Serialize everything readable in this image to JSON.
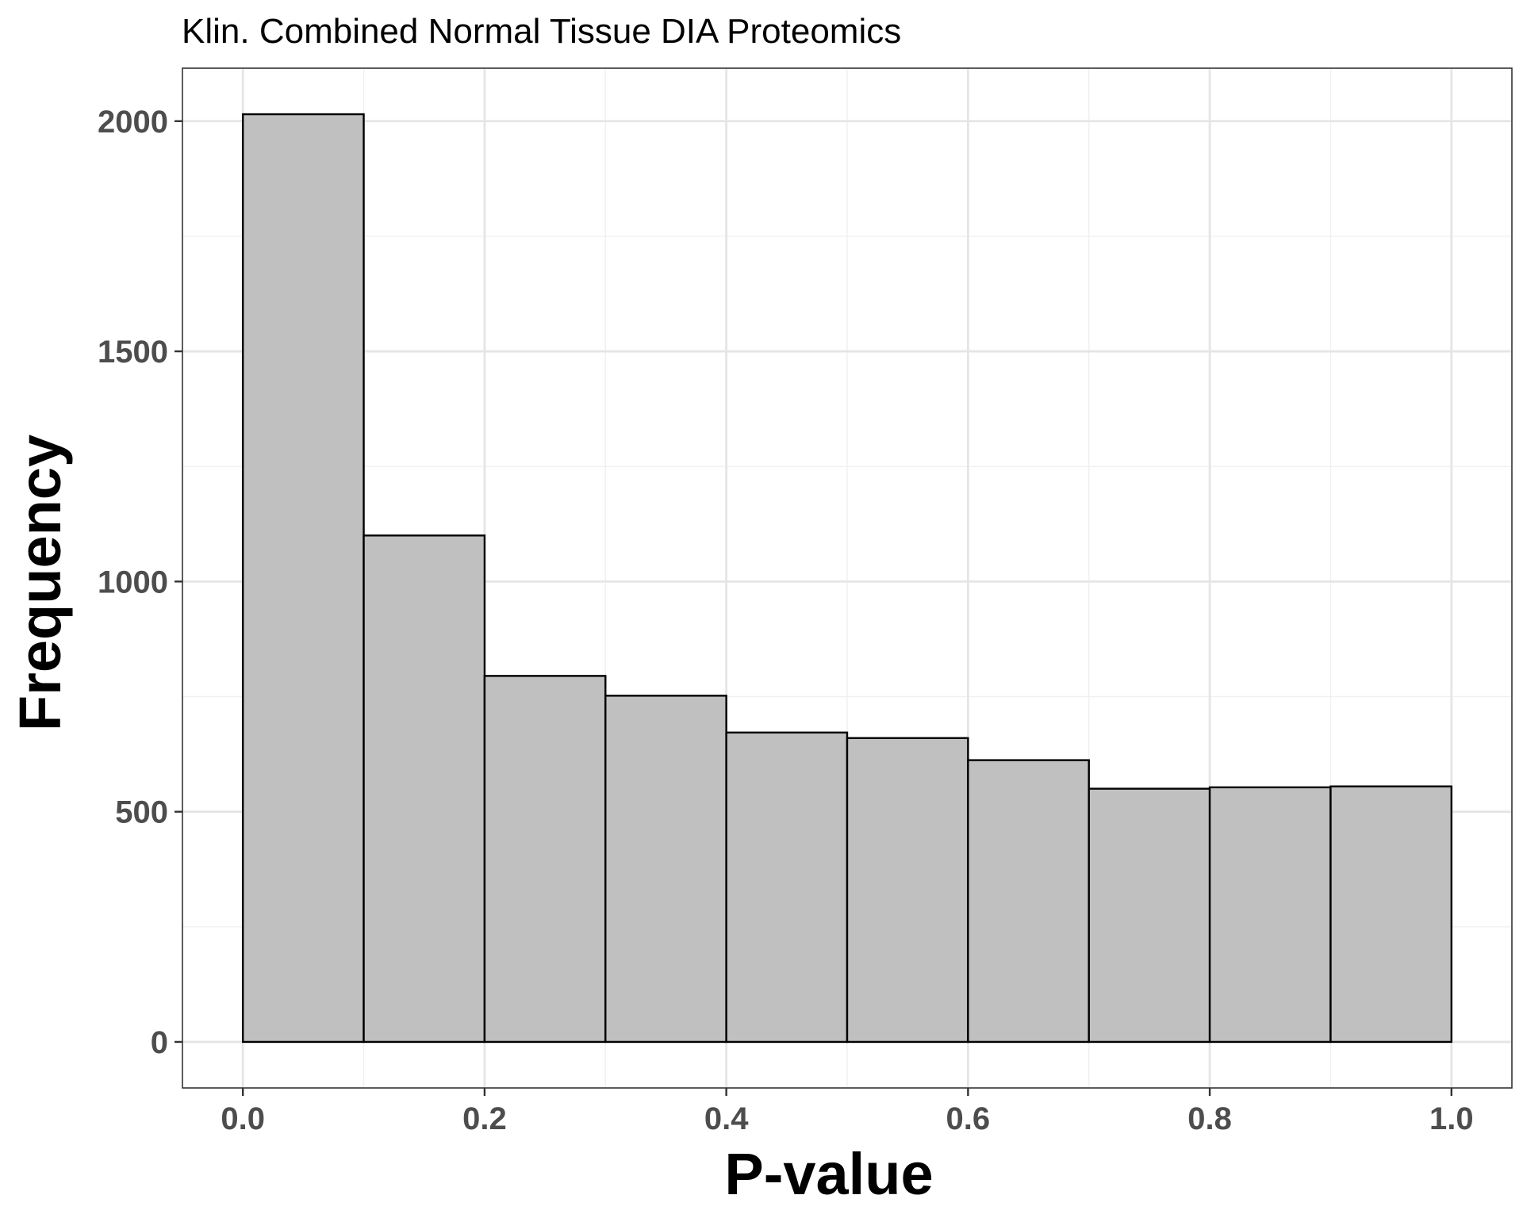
{
  "chart_data": {
    "type": "bar",
    "subtype": "histogram",
    "title": "Klin. Combined Normal Tissue DIA Proteomics",
    "xlabel": "P-value",
    "ylabel": "Frequency",
    "bins": [
      {
        "x0": 0.0,
        "x1": 0.1,
        "count": 2015
      },
      {
        "x0": 0.1,
        "x1": 0.2,
        "count": 1100
      },
      {
        "x0": 0.2,
        "x1": 0.3,
        "count": 795
      },
      {
        "x0": 0.3,
        "x1": 0.4,
        "count": 752
      },
      {
        "x0": 0.4,
        "x1": 0.5,
        "count": 672
      },
      {
        "x0": 0.5,
        "x1": 0.6,
        "count": 660
      },
      {
        "x0": 0.6,
        "x1": 0.7,
        "count": 612
      },
      {
        "x0": 0.7,
        "x1": 0.8,
        "count": 550
      },
      {
        "x0": 0.8,
        "x1": 0.9,
        "count": 553
      },
      {
        "x0": 0.9,
        "x1": 1.0,
        "count": 555
      }
    ],
    "xlim": [
      -0.05,
      1.05
    ],
    "ylim": [
      -100,
      2115
    ],
    "x_ticks": [
      0.0,
      0.2,
      0.4,
      0.6,
      0.8,
      1.0
    ],
    "x_tick_labels": [
      "0.0",
      "0.2",
      "0.4",
      "0.6",
      "0.8",
      "1.0"
    ],
    "y_ticks": [
      0,
      500,
      1000,
      1500,
      2000
    ],
    "y_tick_labels": [
      "0",
      "500",
      "1000",
      "1500",
      "2000"
    ],
    "grid": true,
    "legend": "none",
    "colors": {
      "bar_fill": "#c0c0c0",
      "bar_stroke": "#000000",
      "grid_major": "#e5e5e5",
      "grid_minor": "#f0f0f0",
      "panel_border": "#333333",
      "tick_label": "#4d4d4d"
    }
  }
}
